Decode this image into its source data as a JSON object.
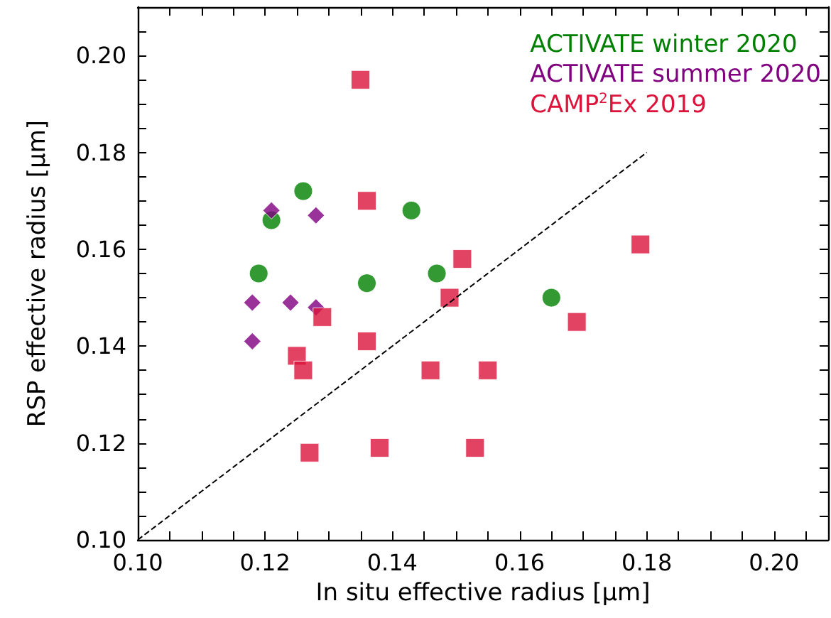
{
  "chart_data": {
    "type": "scatter",
    "xlabel": "In situ effective radius [μm]",
    "ylabel": "RSP effective radius [μm]",
    "xlim": [
      0.1,
      0.2085
    ],
    "ylim": [
      0.1,
      0.21
    ],
    "xticks": [
      {
        "value": 0.1,
        "label": "0.10"
      },
      {
        "value": 0.105,
        "label": null
      },
      {
        "value": 0.11,
        "label": null
      },
      {
        "value": 0.115,
        "label": null
      },
      {
        "value": 0.12,
        "label": "0.12"
      },
      {
        "value": 0.125,
        "label": null
      },
      {
        "value": 0.13,
        "label": null
      },
      {
        "value": 0.135,
        "label": null
      },
      {
        "value": 0.14,
        "label": "0.14"
      },
      {
        "value": 0.145,
        "label": null
      },
      {
        "value": 0.15,
        "label": null
      },
      {
        "value": 0.155,
        "label": null
      },
      {
        "value": 0.16,
        "label": "0.16"
      },
      {
        "value": 0.165,
        "label": null
      },
      {
        "value": 0.17,
        "label": null
      },
      {
        "value": 0.175,
        "label": null
      },
      {
        "value": 0.18,
        "label": "0.18"
      },
      {
        "value": 0.185,
        "label": null
      },
      {
        "value": 0.19,
        "label": null
      },
      {
        "value": 0.195,
        "label": null
      },
      {
        "value": 0.2,
        "label": "0.20"
      },
      {
        "value": 0.205,
        "label": null
      }
    ],
    "yticks": [
      {
        "value": 0.1,
        "label": "0.10"
      },
      {
        "value": 0.105,
        "label": null
      },
      {
        "value": 0.11,
        "label": null
      },
      {
        "value": 0.115,
        "label": null
      },
      {
        "value": 0.12,
        "label": "0.12"
      },
      {
        "value": 0.125,
        "label": null
      },
      {
        "value": 0.13,
        "label": null
      },
      {
        "value": 0.135,
        "label": null
      },
      {
        "value": 0.14,
        "label": "0.14"
      },
      {
        "value": 0.145,
        "label": null
      },
      {
        "value": 0.15,
        "label": null
      },
      {
        "value": 0.155,
        "label": null
      },
      {
        "value": 0.16,
        "label": "0.16"
      },
      {
        "value": 0.165,
        "label": null
      },
      {
        "value": 0.17,
        "label": null
      },
      {
        "value": 0.175,
        "label": null
      },
      {
        "value": 0.18,
        "label": "0.18"
      },
      {
        "value": 0.185,
        "label": null
      },
      {
        "value": 0.19,
        "label": null
      },
      {
        "value": 0.195,
        "label": null
      },
      {
        "value": 0.2,
        "label": "0.20"
      },
      {
        "value": 0.205,
        "label": null
      }
    ],
    "grid": false,
    "legend": "top right",
    "series": [
      {
        "name": "ACTIVATE winter 2020",
        "color": "#008000",
        "marker": "circle",
        "x": [
          0.126,
          0.121,
          0.143,
          0.119,
          0.136,
          0.147,
          0.165
        ],
        "values": [
          0.172,
          0.166,
          0.168,
          0.155,
          0.153,
          0.155,
          0.15
        ]
      },
      {
        "name": "ACTIVATE summer 2020",
        "color": "#800080",
        "marker": "diamond",
        "x": [
          0.121,
          0.128,
          0.118,
          0.124,
          0.128,
          0.118
        ],
        "values": [
          0.168,
          0.167,
          0.149,
          0.149,
          0.148,
          0.141
        ]
      },
      {
        "name": "CAMP$^{2}$Ex 2019",
        "color": "#dc143c",
        "marker": "square",
        "x": [
          0.135,
          0.136,
          0.151,
          0.149,
          0.129,
          0.125,
          0.146,
          0.155,
          0.127
        ],
        "values": [
          0.195,
          0.17,
          0.158,
          0.15,
          0.146,
          0.138,
          0.135,
          0.135,
          0.118
        ]
      },
      {
        "color": "#dc143c",
        "marker": "square",
        "x": [
          0.126,
          0.136,
          0.138,
          0.153,
          0.169,
          0.179
        ],
        "values": [
          0.135,
          0.141,
          0.119,
          0.119,
          0.145,
          0.161
        ]
      },
      {
        "type": "line",
        "color": "#000000",
        "line_style": "dashed",
        "marker": "none",
        "x": [
          0.1,
          0.18
        ],
        "values": [
          0.1,
          0.18
        ]
      }
    ]
  }
}
